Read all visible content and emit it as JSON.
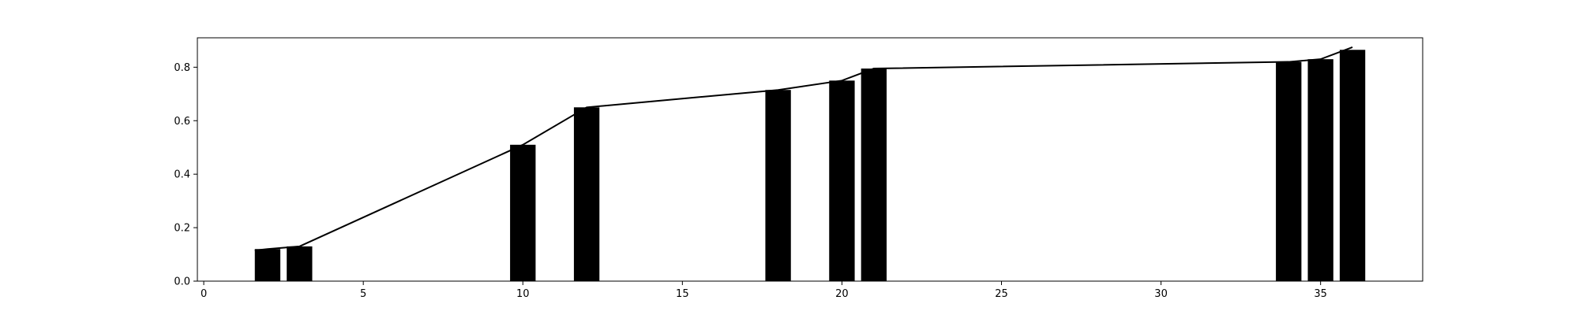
{
  "chart_data": {
    "type": "bar",
    "x": [
      2,
      3,
      10,
      12,
      18,
      20,
      21,
      34,
      35,
      36
    ],
    "values": [
      0.12,
      0.13,
      0.51,
      0.65,
      0.715,
      0.75,
      0.795,
      0.82,
      0.83,
      0.865
    ],
    "line": {
      "x": [
        1.6,
        2.0,
        3.0,
        10.0,
        12.0,
        18.0,
        20.0,
        21.0,
        34.0,
        35.0,
        36.0
      ],
      "y": [
        0.115,
        0.12,
        0.13,
        0.51,
        0.65,
        0.715,
        0.75,
        0.795,
        0.82,
        0.83,
        0.875
      ]
    },
    "bar_width": 0.8,
    "xlim": [
      -0.2,
      38.2
    ],
    "ylim": [
      0,
      0.91
    ],
    "xticks": [
      0,
      5,
      10,
      15,
      20,
      25,
      30,
      35
    ],
    "yticks": [
      0.0,
      0.2,
      0.4,
      0.6,
      0.8
    ],
    "ytick_labels": [
      "0.0",
      "0.2",
      "0.4",
      "0.6",
      "0.8"
    ],
    "title": "",
    "xlabel": "",
    "ylabel": "",
    "grid": false,
    "legend": "none",
    "bar_color": "#000000",
    "line_color": "#000000"
  }
}
